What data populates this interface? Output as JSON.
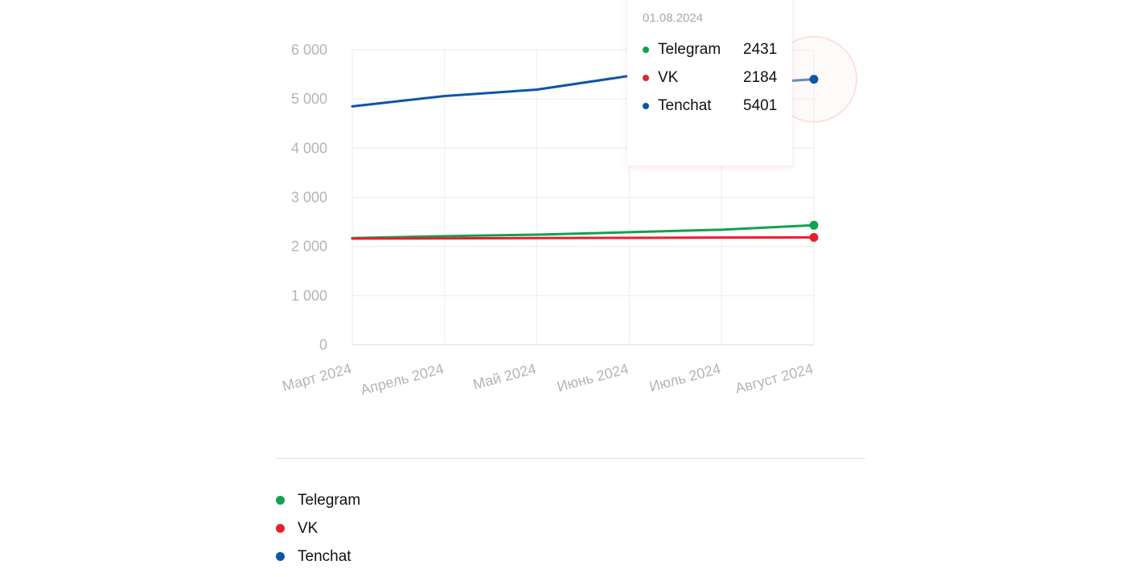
{
  "chart_data": {
    "type": "line",
    "categories": [
      "Март 2024",
      "Апрель 2024",
      "Май 2024",
      "Июнь 2024",
      "Июль 2024",
      "Август 2024"
    ],
    "y_ticks": [
      "0",
      "1 000",
      "2 000",
      "3 000",
      "4 000",
      "5 000",
      "6 000"
    ],
    "ylim": [
      0,
      6000
    ],
    "grid": true,
    "legend_position": "bottom",
    "series": [
      {
        "name": "Telegram",
        "color": "#12a150",
        "values": [
          2170,
          2210,
          2240,
          2290,
          2340,
          2431
        ]
      },
      {
        "name": "VK",
        "color": "#e8202a",
        "values": [
          2160,
          2165,
          2170,
          2175,
          2180,
          2184
        ]
      },
      {
        "name": "Tenchat",
        "color": "#0d55a6",
        "values": [
          4850,
          5060,
          5190,
          5470,
          5280,
          5401
        ]
      }
    ],
    "tooltip": {
      "date": "01.08.2024",
      "rows": [
        {
          "name": "Telegram",
          "value": "2431",
          "color": "#12a150"
        },
        {
          "name": "VK",
          "value": "2184",
          "color": "#e8202a"
        },
        {
          "name": "Tenchat",
          "value": "5401",
          "color": "#0d55a6"
        }
      ]
    }
  }
}
